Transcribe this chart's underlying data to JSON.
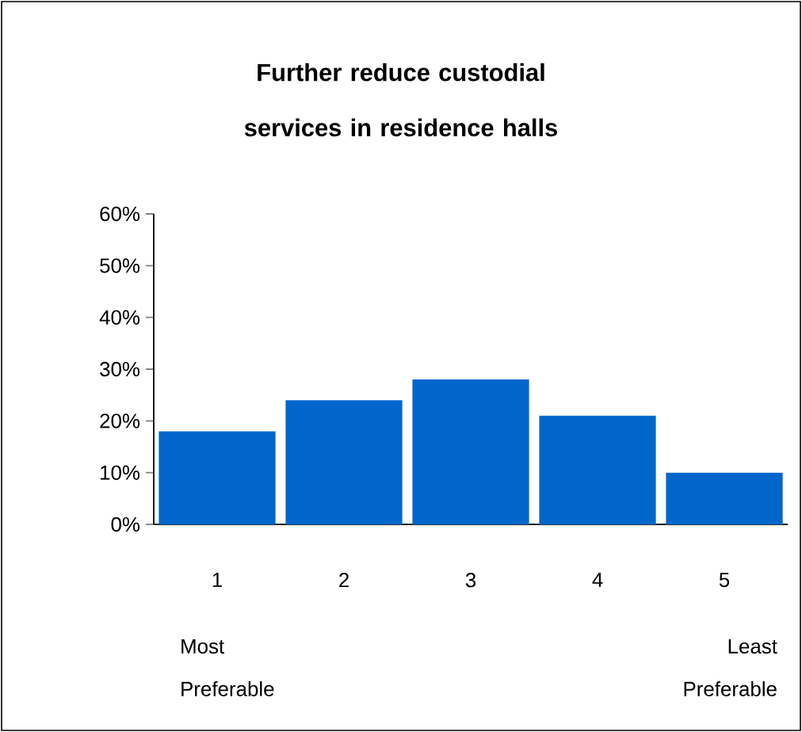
{
  "chart_data": {
    "type": "bar",
    "title": "Further reduce custodial services in residence halls",
    "categories": [
      "1",
      "2",
      "3",
      "4",
      "5"
    ],
    "values": [
      18,
      24,
      28,
      21,
      10
    ],
    "color": "#0066cc",
    "ylim": [
      0,
      60
    ],
    "yticks": [
      {
        "value": 0,
        "label": "0%"
      },
      {
        "value": 10,
        "label": "10%"
      },
      {
        "value": 20,
        "label": "20%"
      },
      {
        "value": 30,
        "label": "30%"
      },
      {
        "value": 40,
        "label": "40%"
      },
      {
        "value": 50,
        "label": "50%"
      },
      {
        "value": 60,
        "label": "60%"
      }
    ],
    "annotations": [
      "Most Preferable",
      "Least Preferable"
    ],
    "grid": false
  }
}
